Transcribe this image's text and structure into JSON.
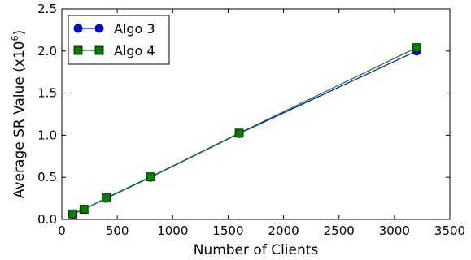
{
  "chart_data": {
    "type": "line",
    "xlabel": "Number of Clients",
    "ylabel": "Average SR Value (x10",
    "ylabel_superscript": "6",
    "ylabel_suffix": ")",
    "xlim": [
      0,
      3500
    ],
    "ylim": [
      0,
      2.5
    ],
    "x_ticks": [
      0,
      500,
      1000,
      1500,
      2000,
      2500,
      3000,
      3500
    ],
    "x_tick_labels": [
      "0",
      "500",
      "1000",
      "1500",
      "2000",
      "2500",
      "3000",
      "3500"
    ],
    "y_ticks": [
      0,
      0.5,
      1.0,
      1.5,
      2.0,
      2.5
    ],
    "y_tick_labels": [
      "0.0",
      "0.5",
      "1.0",
      "1.5",
      "2.0",
      "2.5"
    ],
    "grid": false,
    "legend": {
      "position": "top-left"
    },
    "series": [
      {
        "name": "Algo 3",
        "color": "#0000ff",
        "marker": "circle",
        "x": [
          100,
          200,
          400,
          800,
          1600,
          3200
        ],
        "y": [
          0.06,
          0.12,
          0.25,
          0.5,
          1.02,
          2.0
        ]
      },
      {
        "name": "Algo 4",
        "color": "#008000",
        "marker": "square",
        "x": [
          100,
          200,
          400,
          800,
          1600,
          3200
        ],
        "y": [
          0.065,
          0.12,
          0.255,
          0.505,
          1.025,
          2.04
        ]
      }
    ]
  }
}
